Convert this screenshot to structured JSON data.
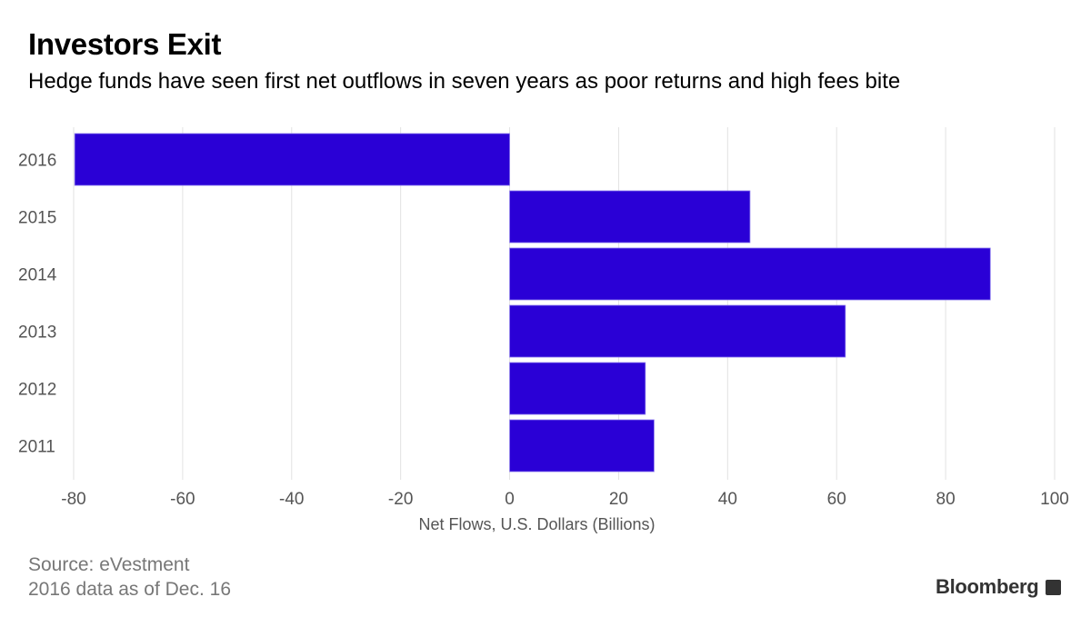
{
  "title": "Investors Exit",
  "subtitle": "Hedge funds have seen first net outflows in seven years as poor returns and high fees bite",
  "source_lines": [
    "Source: eVestment",
    "2016 data as of Dec. 16"
  ],
  "brand": "Bloomberg",
  "chart_data": {
    "type": "bar",
    "orientation": "horizontal",
    "title": "Investors Exit",
    "categories": [
      "2016",
      "2015",
      "2014",
      "2013",
      "2012",
      "2011"
    ],
    "values": [
      -79.8,
      44.1,
      88.2,
      61.6,
      24.9,
      26.5
    ],
    "xlabel": "Net Flows, U.S. Dollars (Billions)",
    "ylabel": "",
    "xlim": [
      -80,
      100
    ],
    "xticks": [
      -80,
      -60,
      -40,
      -20,
      0,
      20,
      40,
      60,
      80,
      100
    ],
    "grid": true,
    "bar_color": "#2a00d6"
  }
}
